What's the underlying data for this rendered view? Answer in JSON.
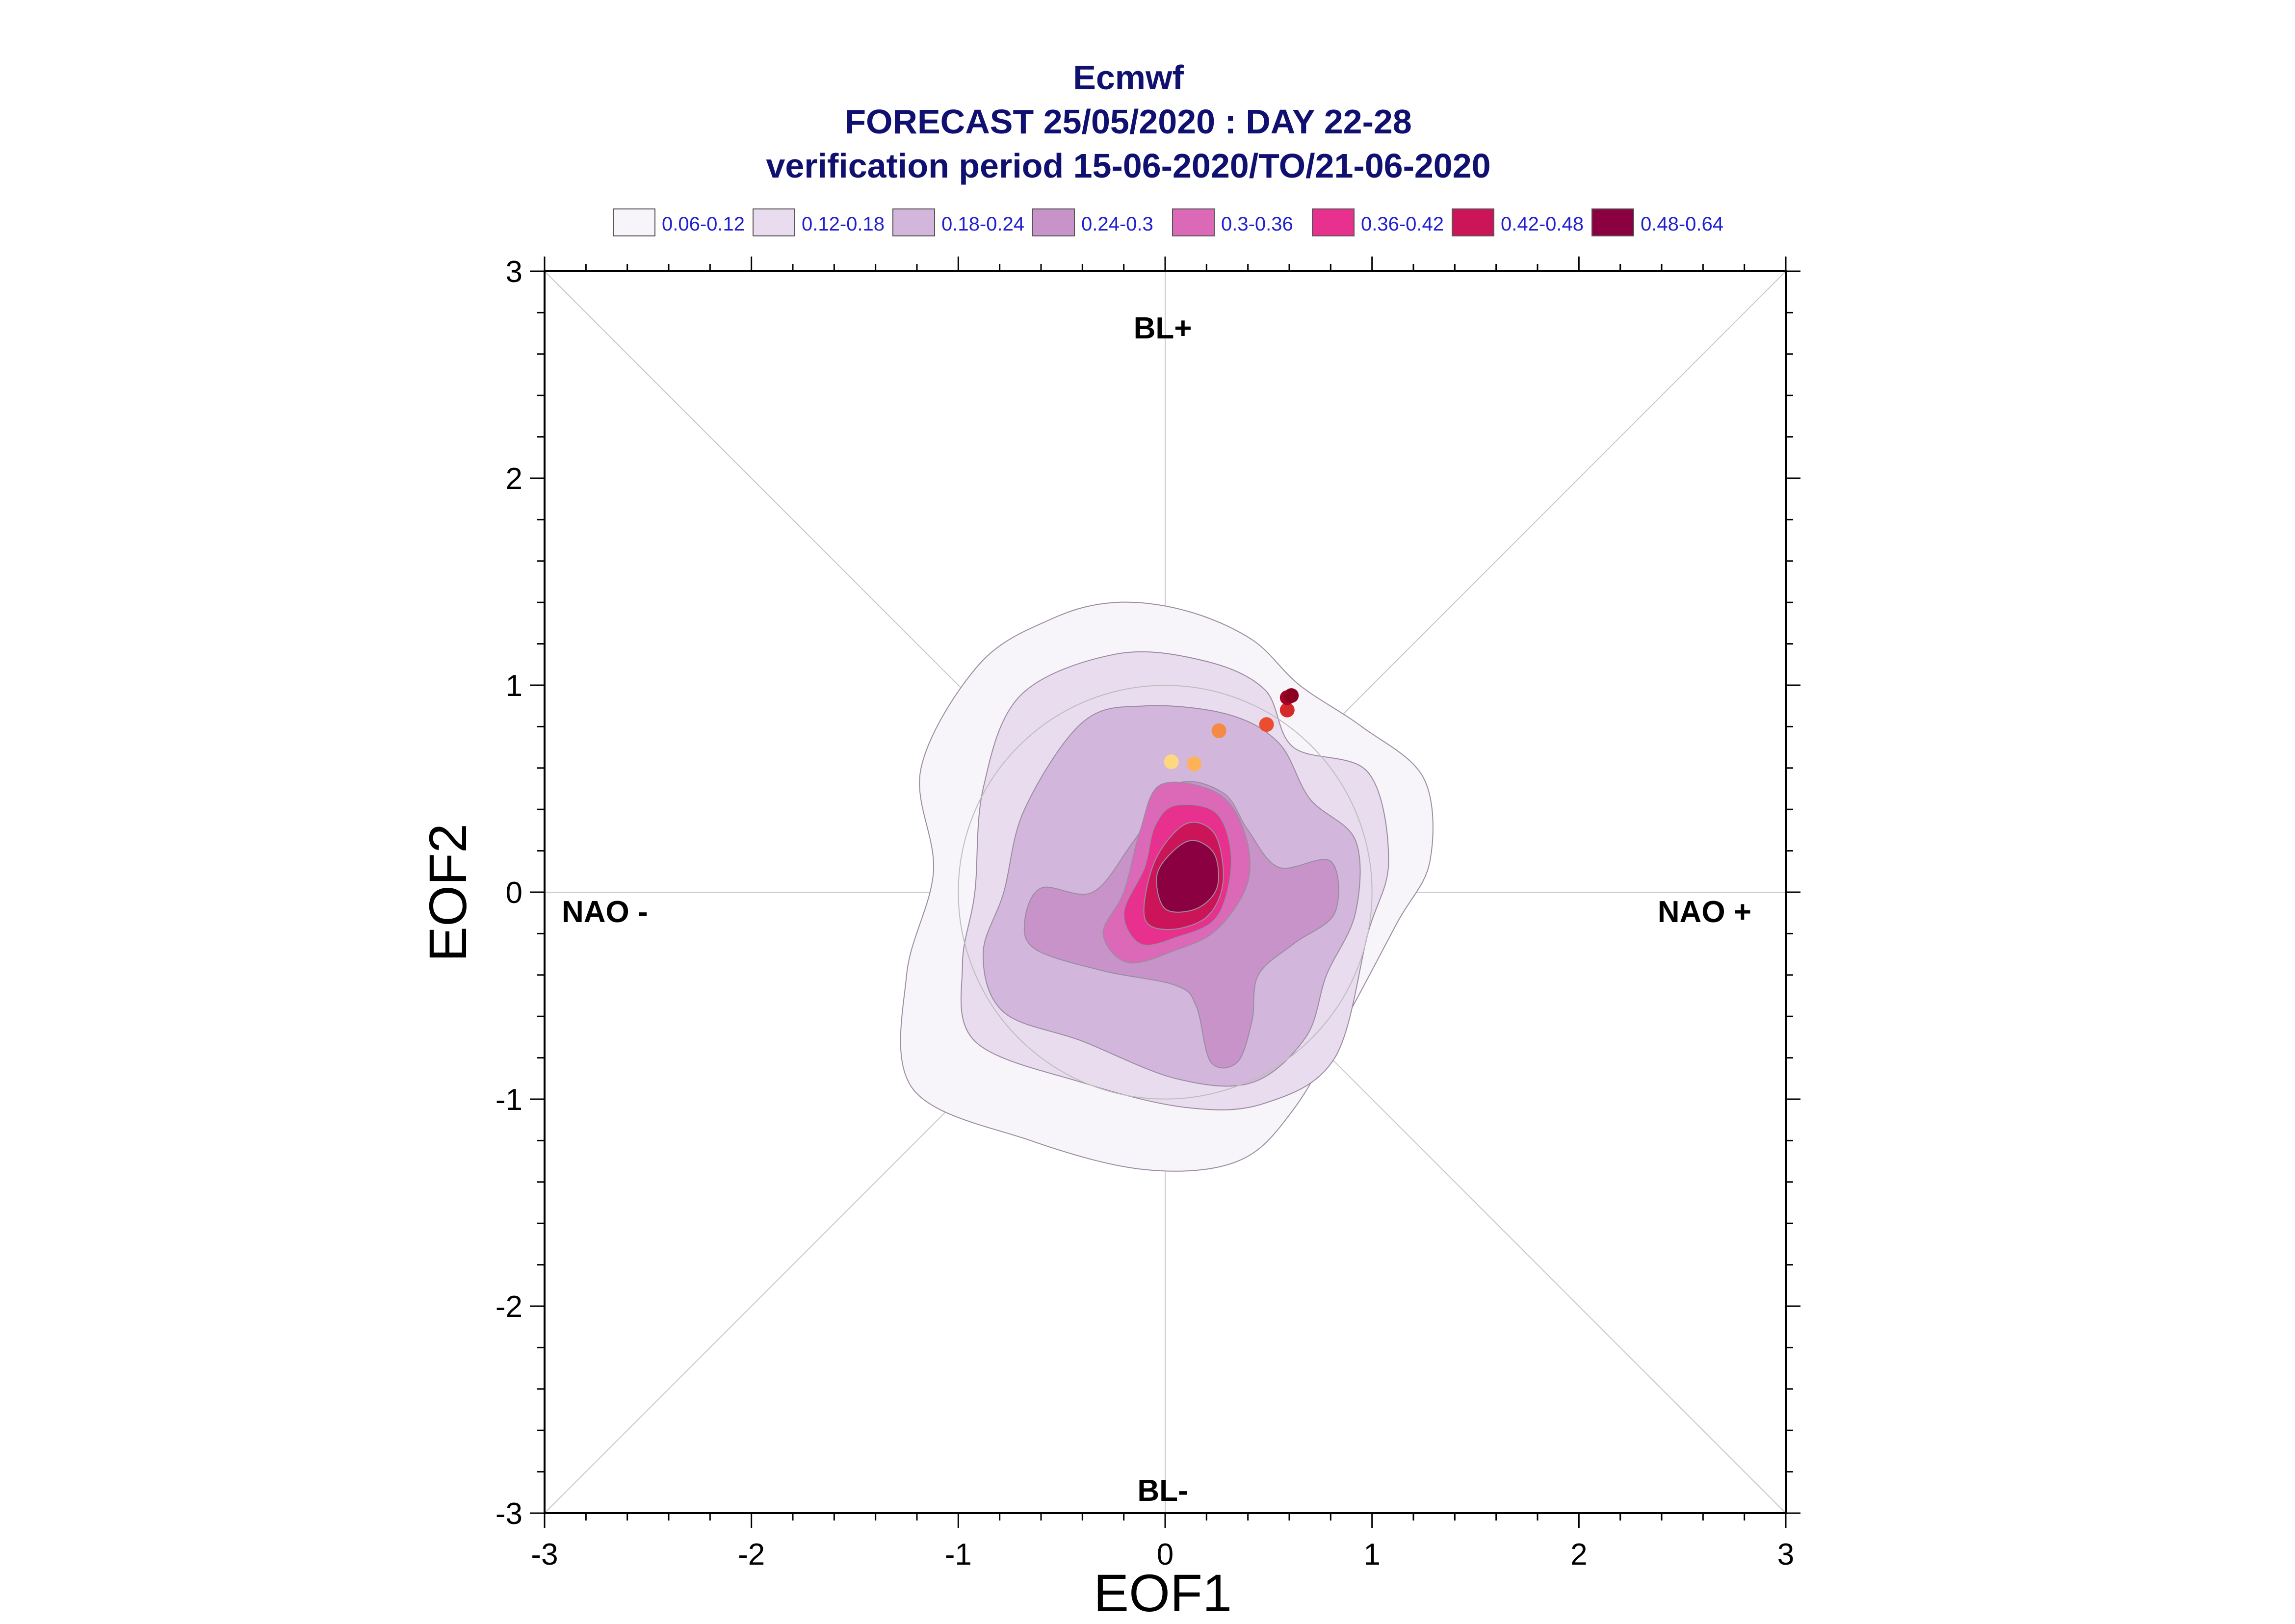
{
  "chart_data": {
    "type": "contour",
    "title_lines": [
      "Ecmwf",
      "FORECAST 25/05/2020 : DAY 22-28",
      "verification period 15-06-2020/TO/21-06-2020"
    ],
    "xlabel": "EOF1",
    "ylabel": "EOF2",
    "xlim": [
      -3,
      3
    ],
    "ylim": [
      -3,
      3
    ],
    "x_ticks": [
      "-3",
      "-2",
      "-1",
      "0",
      "1",
      "2",
      "3"
    ],
    "y_ticks": [
      "-3",
      "-2",
      "-1",
      "0",
      "1",
      "2",
      "3"
    ],
    "regime_labels": {
      "top": "BL+",
      "bottom": "BL-",
      "left": "NAO -",
      "right": "NAO +"
    },
    "legend": [
      {
        "label": "0.06-0.12",
        "color": "#f8f5fa"
      },
      {
        "label": "0.12-0.18",
        "color": "#e8dcee"
      },
      {
        "label": "0.18-0.24",
        "color": "#d3b6dc"
      },
      {
        "label": "0.24-0.3",
        "color": "#c793c9"
      },
      {
        "label": "0.3-0.36",
        "color": "#dc69b8"
      },
      {
        "label": "0.36-0.42",
        "color": "#e8318f"
      },
      {
        "label": "0.42-0.48",
        "color": "#cb1558"
      },
      {
        "label": "0.48-0.64",
        "color": "#8b0041"
      }
    ],
    "contours": [
      {
        "level": 0,
        "points": [
          [
            -0.24,
            1.4
          ],
          [
            0.1,
            1.36
          ],
          [
            0.42,
            1.22
          ],
          [
            0.65,
            1.0
          ],
          [
            0.95,
            0.8
          ],
          [
            1.25,
            0.55
          ],
          [
            1.28,
            0.15
          ],
          [
            1.12,
            -0.15
          ],
          [
            0.88,
            -0.6
          ],
          [
            0.62,
            -1.05
          ],
          [
            0.35,
            -1.3
          ],
          [
            -0.1,
            -1.34
          ],
          [
            -0.65,
            -1.2
          ],
          [
            -1.22,
            -0.95
          ],
          [
            -1.25,
            -0.4
          ],
          [
            -1.12,
            0.1
          ],
          [
            -1.18,
            0.6
          ],
          [
            -0.9,
            1.1
          ],
          [
            -0.55,
            1.32
          ]
        ]
      },
      {
        "level": 1,
        "points": [
          [
            -0.24,
            1.15
          ],
          [
            0.18,
            1.12
          ],
          [
            0.48,
            0.98
          ],
          [
            0.62,
            0.7
          ],
          [
            0.98,
            0.58
          ],
          [
            1.08,
            0.15
          ],
          [
            0.98,
            -0.2
          ],
          [
            0.82,
            -0.8
          ],
          [
            0.48,
            -1.02
          ],
          [
            0.1,
            -1.04
          ],
          [
            -0.4,
            -0.92
          ],
          [
            -0.92,
            -0.72
          ],
          [
            -0.98,
            -0.35
          ],
          [
            -0.92,
            0.0
          ],
          [
            -0.88,
            0.5
          ],
          [
            -0.7,
            0.95
          ]
        ]
      },
      {
        "level": 2,
        "points": [
          [
            -0.1,
            0.9
          ],
          [
            0.3,
            0.86
          ],
          [
            0.55,
            0.72
          ],
          [
            0.7,
            0.45
          ],
          [
            0.92,
            0.25
          ],
          [
            0.92,
            -0.1
          ],
          [
            0.78,
            -0.4
          ],
          [
            0.68,
            -0.7
          ],
          [
            0.42,
            -0.92
          ],
          [
            0.05,
            -0.9
          ],
          [
            -0.4,
            -0.72
          ],
          [
            -0.78,
            -0.58
          ],
          [
            -0.88,
            -0.3
          ],
          [
            -0.78,
            0.0
          ],
          [
            -0.68,
            0.4
          ],
          [
            -0.4,
            0.82
          ]
        ]
      },
      {
        "level": 3,
        "points": [
          [
            0.05,
            0.52
          ],
          [
            0.28,
            0.48
          ],
          [
            0.4,
            0.3
          ],
          [
            0.55,
            0.12
          ],
          [
            0.8,
            0.15
          ],
          [
            0.82,
            -0.1
          ],
          [
            0.62,
            -0.25
          ],
          [
            0.45,
            -0.4
          ],
          [
            0.42,
            -0.62
          ],
          [
            0.35,
            -0.82
          ],
          [
            0.22,
            -0.82
          ],
          [
            0.15,
            -0.55
          ],
          [
            0.05,
            -0.45
          ],
          [
            -0.3,
            -0.38
          ],
          [
            -0.62,
            -0.28
          ],
          [
            -0.68,
            -0.15
          ],
          [
            -0.6,
            0.02
          ],
          [
            -0.35,
            0.0
          ],
          [
            -0.15,
            0.25
          ]
        ]
      },
      {
        "level": 4,
        "points": [
          [
            -0.02,
            0.52
          ],
          [
            0.25,
            0.48
          ],
          [
            0.38,
            0.3
          ],
          [
            0.4,
            0.05
          ],
          [
            0.25,
            -0.18
          ],
          [
            0.05,
            -0.28
          ],
          [
            -0.18,
            -0.34
          ],
          [
            -0.3,
            -0.2
          ],
          [
            -0.2,
            0.0
          ],
          [
            -0.12,
            0.3
          ]
        ]
      },
      {
        "level": 5,
        "points": [
          [
            0.05,
            0.42
          ],
          [
            0.25,
            0.38
          ],
          [
            0.32,
            0.15
          ],
          [
            0.25,
            -0.12
          ],
          [
            0.05,
            -0.22
          ],
          [
            -0.12,
            -0.25
          ],
          [
            -0.2,
            -0.1
          ],
          [
            -0.1,
            0.12
          ],
          [
            -0.05,
            0.32
          ]
        ]
      },
      {
        "level": 6,
        "points": [
          [
            0.1,
            0.33
          ],
          [
            0.24,
            0.28
          ],
          [
            0.28,
            0.05
          ],
          [
            0.2,
            -0.12
          ],
          [
            0.02,
            -0.18
          ],
          [
            -0.1,
            -0.12
          ],
          [
            -0.05,
            0.15
          ]
        ]
      },
      {
        "level": 7,
        "points": [
          [
            0.14,
            0.25
          ],
          [
            0.24,
            0.18
          ],
          [
            0.25,
            0.02
          ],
          [
            0.15,
            -0.08
          ],
          [
            0.0,
            -0.08
          ],
          [
            -0.04,
            0.08
          ],
          [
            0.04,
            0.2
          ]
        ]
      }
    ],
    "contour_stroke": "#9a8ca0",
    "markers": [
      {
        "x": 0.03,
        "y": 0.63,
        "color": "#fdd87f"
      },
      {
        "x": 0.14,
        "y": 0.62,
        "color": "#fdb258"
      },
      {
        "x": 0.26,
        "y": 0.78,
        "color": "#f68a45"
      },
      {
        "x": 0.49,
        "y": 0.81,
        "color": "#ea4d30"
      },
      {
        "x": 0.59,
        "y": 0.88,
        "color": "#d42a2a"
      },
      {
        "x": 0.59,
        "y": 0.94,
        "color": "#a50026"
      },
      {
        "x": 0.61,
        "y": 0.95,
        "color": "#8b0020"
      }
    ],
    "reference_circle_radius": 1,
    "guide_line_color": "#c8c8c8"
  }
}
